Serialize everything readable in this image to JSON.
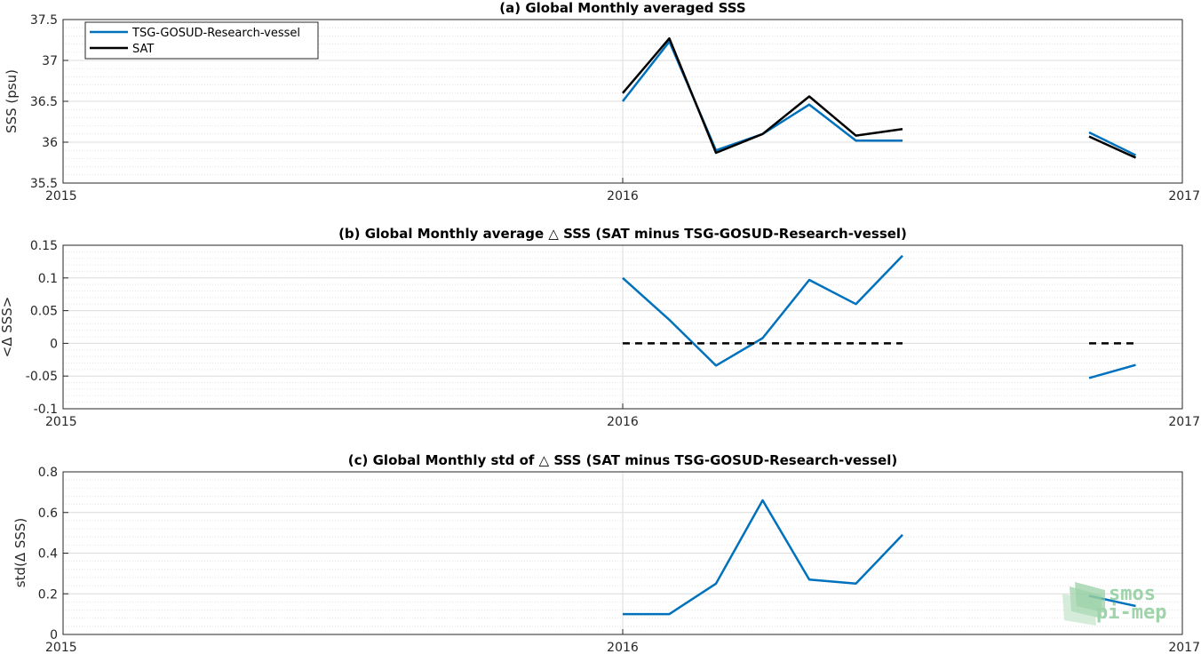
{
  "chart_data": [
    {
      "type": "line",
      "title": "(a) Global Monthly averaged SSS",
      "ylabel": "SSS (psu)",
      "xlim": [
        "2015",
        "2017"
      ],
      "ylim": [
        35.5,
        37.5
      ],
      "xticks": [
        "2015",
        "2016",
        "2017"
      ],
      "yticks": [
        "35.5",
        "36",
        "36.5",
        "37",
        "37.5"
      ],
      "grid": true,
      "legend_position": "top-left",
      "series": [
        {
          "name": "TSG-GOSUD-Research-vessel",
          "color": "#0072bd",
          "x": [
            "2016-01",
            "2016-02",
            "2016-03",
            "2016-04",
            "2016-05",
            "2016-06",
            "2016-07",
            "2016-08",
            "2016-09",
            "2016-10",
            "2016-11",
            "2016-12"
          ],
          "values": [
            36.5,
            37.23,
            35.9,
            36.1,
            36.46,
            36.02,
            36.02,
            null,
            null,
            null,
            36.12,
            35.84
          ]
        },
        {
          "name": "SAT",
          "color": "#000000",
          "x": [
            "2016-01",
            "2016-02",
            "2016-03",
            "2016-04",
            "2016-05",
            "2016-06",
            "2016-07",
            "2016-08",
            "2016-09",
            "2016-10",
            "2016-11",
            "2016-12"
          ],
          "values": [
            36.6,
            37.27,
            35.87,
            36.1,
            36.56,
            36.08,
            36.16,
            null,
            null,
            null,
            36.07,
            35.81
          ]
        }
      ]
    },
    {
      "type": "line",
      "title": "(b) Global Monthly average △ SSS (SAT minus TSG-GOSUD-Research-vessel)",
      "ylabel": "<Δ SSS>",
      "xlim": [
        "2015",
        "2017"
      ],
      "ylim": [
        -0.1,
        0.15
      ],
      "xticks": [
        "2015",
        "2016",
        "2017"
      ],
      "yticks": [
        "-0.1",
        "-0.05",
        "0",
        "0.05",
        "0.1",
        "0.15"
      ],
      "grid": true,
      "series": [
        {
          "color": "#0072bd",
          "x": [
            "2016-01",
            "2016-02",
            "2016-03",
            "2016-04",
            "2016-05",
            "2016-06",
            "2016-07",
            "2016-08",
            "2016-09",
            "2016-10",
            "2016-11",
            "2016-12"
          ],
          "values": [
            0.1,
            0.036,
            -0.034,
            0.008,
            0.097,
            0.06,
            0.134,
            null,
            null,
            null,
            -0.053,
            -0.033
          ]
        },
        {
          "color": "#000000",
          "dashed": true,
          "x": [
            "2016-01",
            "2016-02",
            "2016-03",
            "2016-04",
            "2016-05",
            "2016-06",
            "2016-07",
            "2016-08",
            "2016-09",
            "2016-10",
            "2016-11",
            "2016-12"
          ],
          "values": [
            0,
            0,
            0,
            0,
            0,
            0,
            0,
            null,
            null,
            null,
            0,
            0
          ]
        }
      ]
    },
    {
      "type": "line",
      "title": "(c) Global Monthly std of △ SSS (SAT minus TSG-GOSUD-Research-vessel)",
      "ylabel": "std(Δ SSS)",
      "xlim": [
        "2015",
        "2017"
      ],
      "ylim": [
        0,
        0.8
      ],
      "xticks": [
        "2015",
        "2016",
        "2017"
      ],
      "yticks": [
        "0",
        "0.2",
        "0.4",
        "0.6",
        "0.8"
      ],
      "grid": true,
      "series": [
        {
          "color": "#0072bd",
          "x": [
            "2016-01",
            "2016-02",
            "2016-03",
            "2016-04",
            "2016-05",
            "2016-06",
            "2016-07",
            "2016-08",
            "2016-09",
            "2016-10",
            "2016-11",
            "2016-12"
          ],
          "values": [
            0.1,
            0.1,
            0.25,
            0.66,
            0.27,
            0.25,
            0.49,
            null,
            null,
            null,
            0.19,
            0.14
          ]
        }
      ]
    }
  ],
  "logo": {
    "text_line1": "smos",
    "text_line2": "pi-mep",
    "color": "#8fcc9c"
  }
}
